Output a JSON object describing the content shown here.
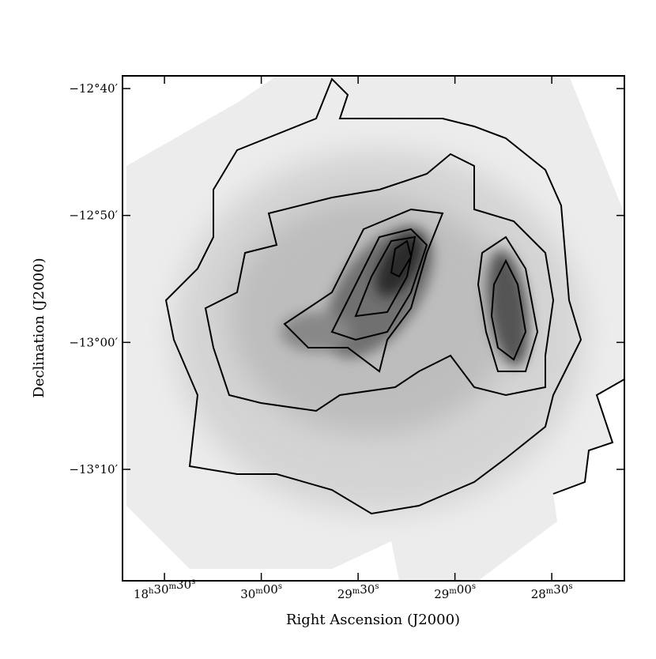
{
  "chart_data": {
    "type": "image",
    "xlabel": "Right Ascension (J2000)",
    "ylabel": "Declination (J2000)",
    "xlim": [
      66643,
      66487.5
    ],
    "xticks": [
      {
        "value": 66630,
        "label": "18h30m30s"
      },
      {
        "value": 66600,
        "label": "30m00s"
      },
      {
        "value": 66570,
        "label": "29m30s"
      },
      {
        "value": 66540,
        "label": "29m00s"
      },
      {
        "value": 66510,
        "label": "28m30s"
      }
    ],
    "ylim": [
      -13.313,
      -12.65
    ],
    "yticks": [
      {
        "value": -12.6667,
        "label": "−12°40′"
      },
      {
        "value": -12.8333,
        "label": "−12°50′"
      },
      {
        "value": -13.0,
        "label": "−13°00′"
      },
      {
        "value": -13.1667,
        "label": "−13°10′"
      }
    ]
  }
}
